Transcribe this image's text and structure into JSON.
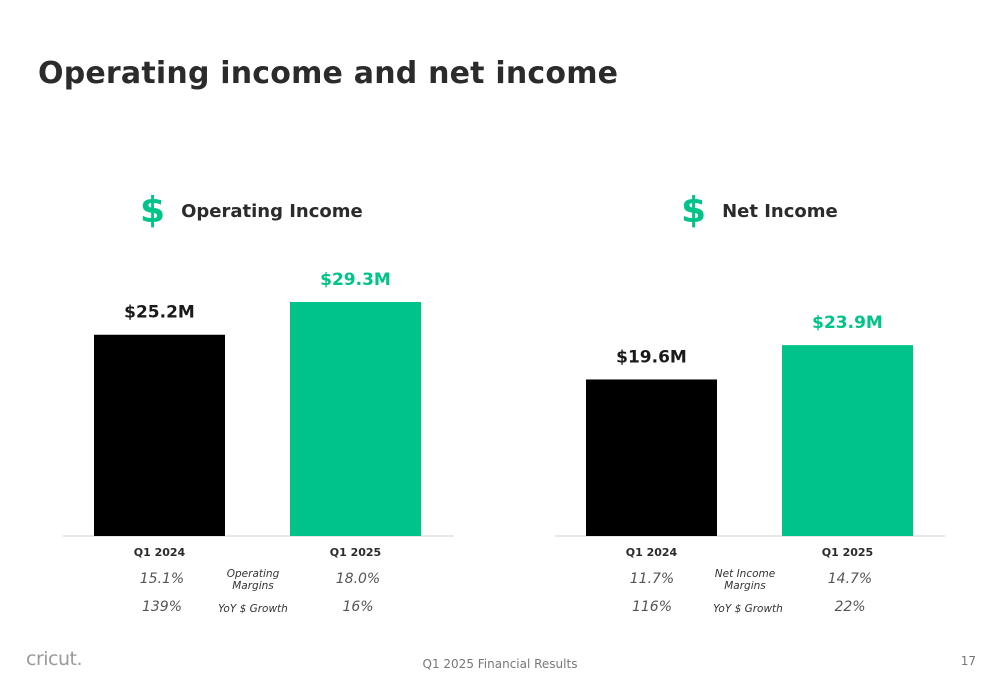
{
  "slide": {
    "title": "Operating income and net income",
    "logo": "cricut.",
    "footer": "Q1 2025 Financial Results",
    "page_number": "17"
  },
  "colors": {
    "prior": "#000000",
    "current": "#00c389",
    "axis": "#d0d0d0"
  },
  "chart_data": [
    {
      "type": "bar",
      "title": "Operating Income",
      "icon": "dollar-icon",
      "categories": [
        "Q1 2024",
        "Q1 2025"
      ],
      "values": [
        25.2,
        29.3
      ],
      "value_labels": [
        "$25.2M",
        "$29.3M"
      ],
      "unit": "$M",
      "ylim": [
        0,
        29.3
      ],
      "metrics": [
        {
          "label": "Operating Margins",
          "values": [
            "15.1%",
            "18.0%"
          ]
        },
        {
          "label": "YoY $ Growth",
          "values": [
            "139%",
            "16%"
          ]
        }
      ]
    },
    {
      "type": "bar",
      "title": "Net Income",
      "icon": "dollar-icon",
      "categories": [
        "Q1 2024",
        "Q1 2025"
      ],
      "values": [
        19.6,
        23.9
      ],
      "value_labels": [
        "$19.6M",
        "$23.9M"
      ],
      "unit": "$M",
      "ylim": [
        0,
        29.3
      ],
      "metrics": [
        {
          "label": "Net Income Margins",
          "values": [
            "11.7%",
            "14.7%"
          ]
        },
        {
          "label": "YoY $ Growth",
          "values": [
            "116%",
            "22%"
          ]
        }
      ]
    }
  ]
}
